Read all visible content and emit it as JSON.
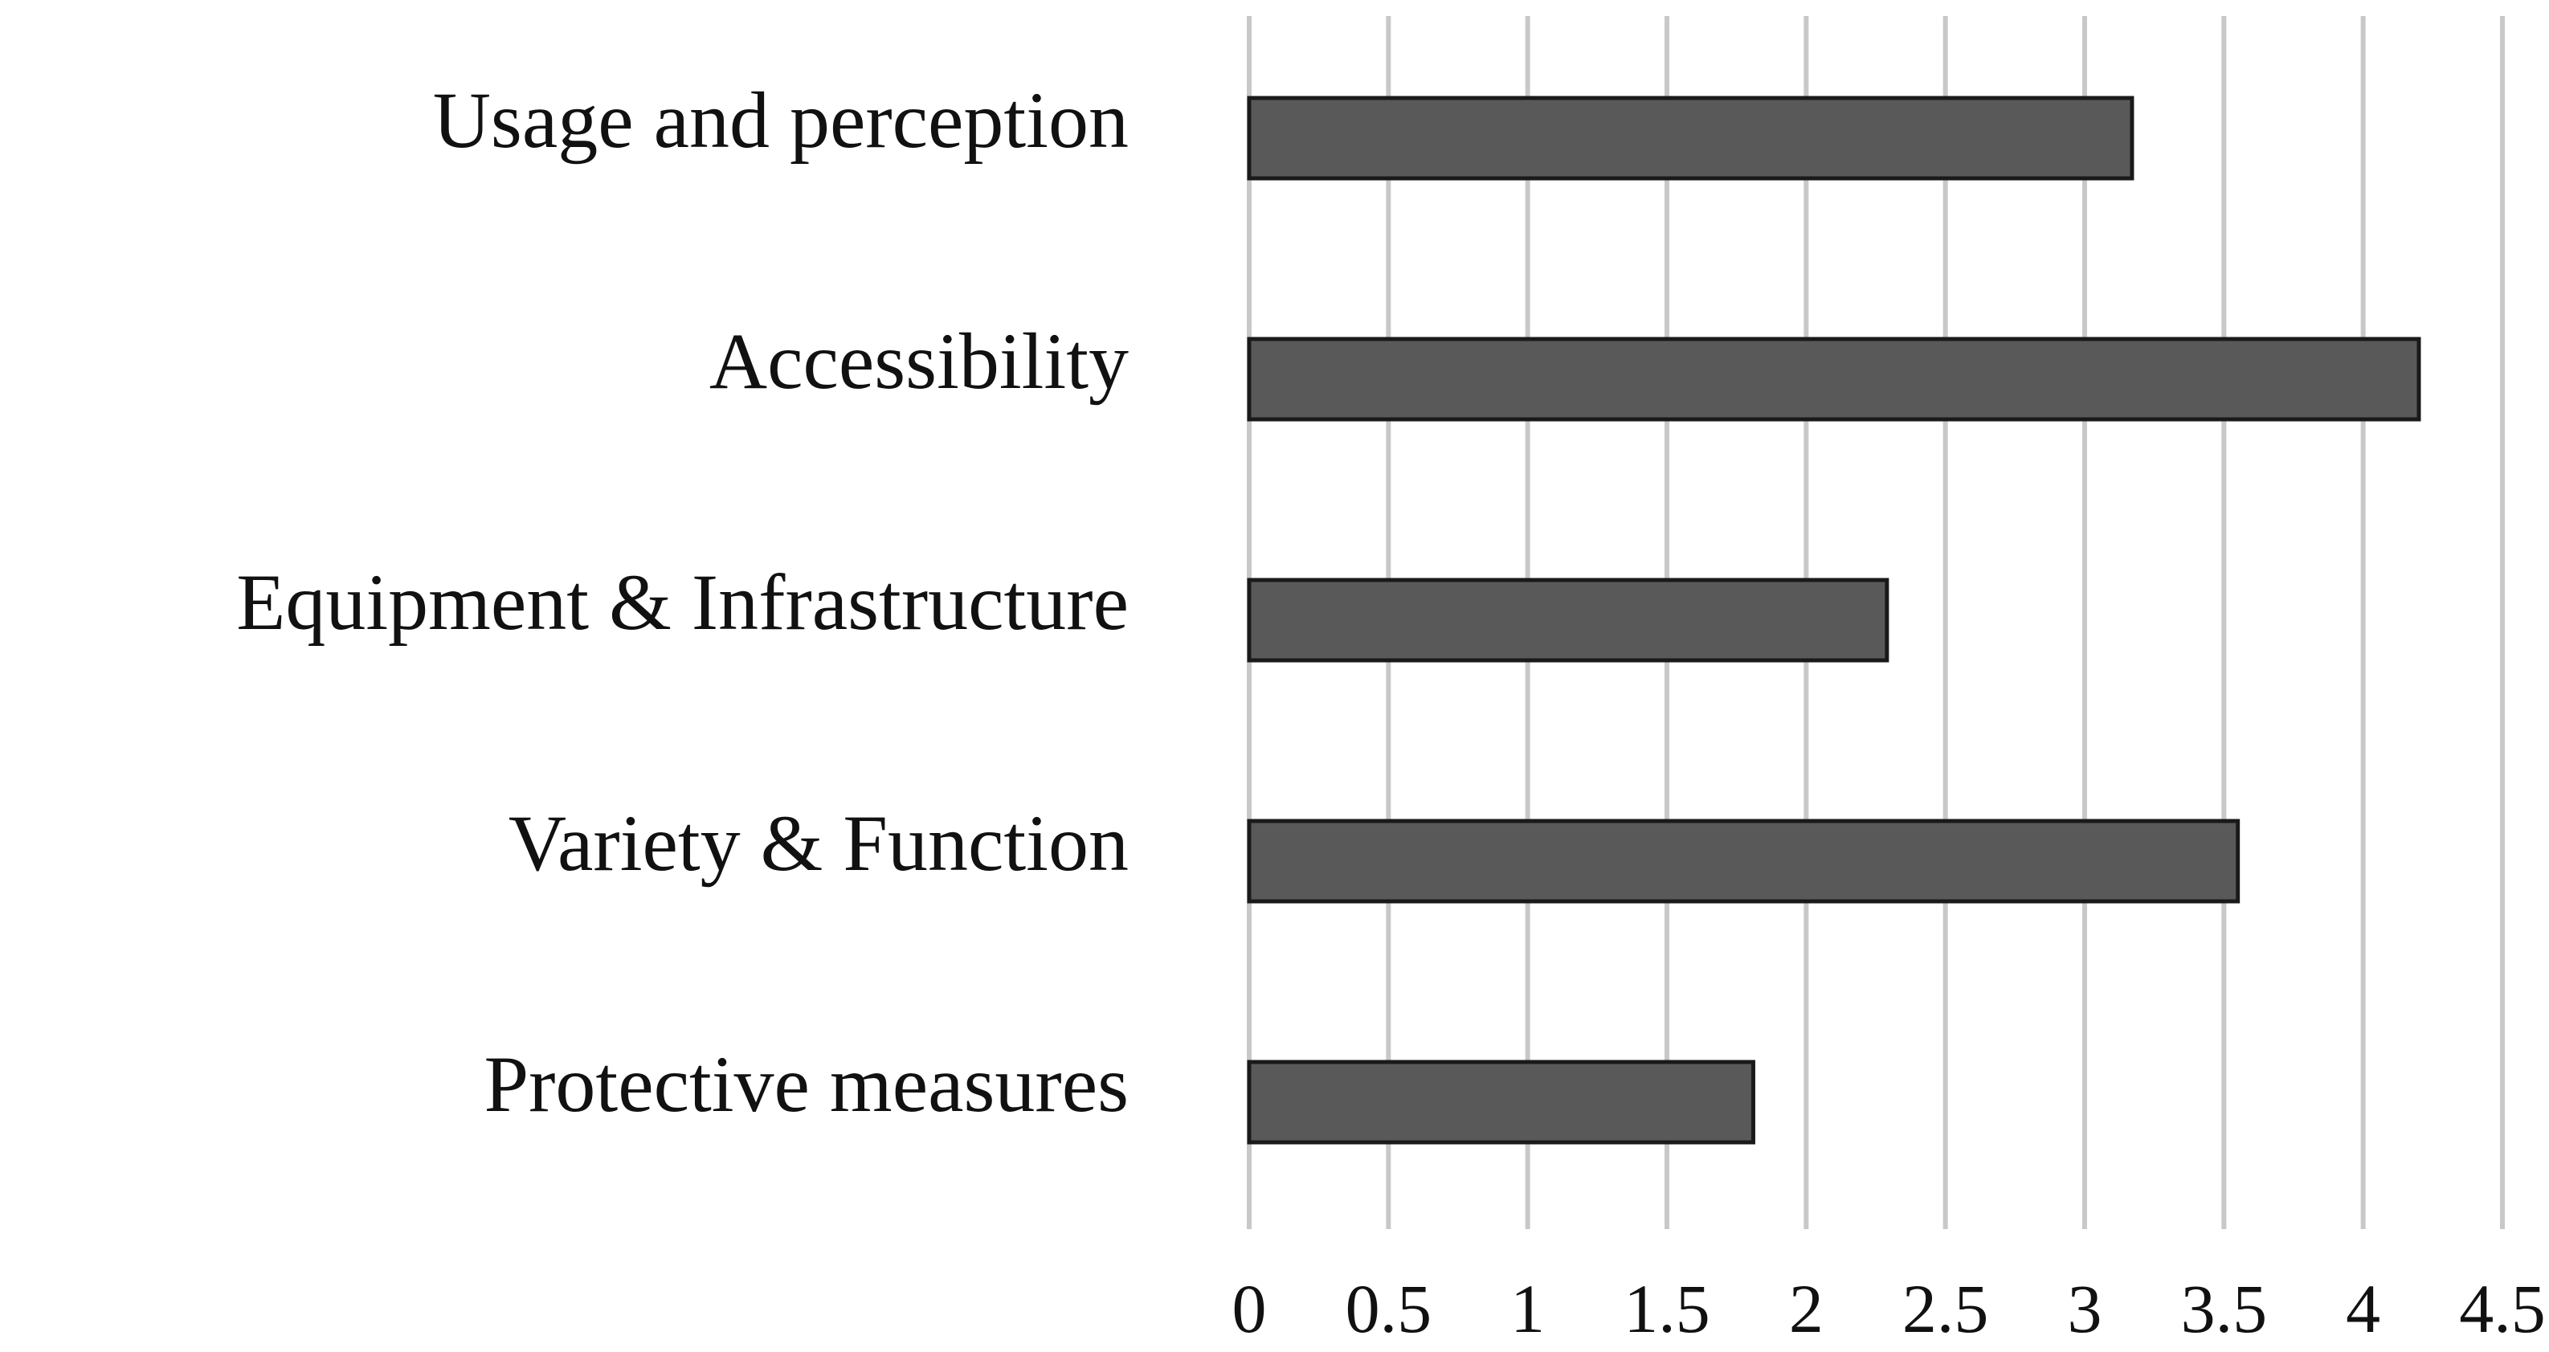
{
  "chart_data": {
    "type": "bar",
    "orientation": "horizontal",
    "categories": [
      "Usage and perception",
      "Accessibility",
      "Equipment & Infrastructure",
      "Variety & Function",
      "Protective measures"
    ],
    "values": [
      3.17,
      4.2,
      2.29,
      3.55,
      1.81
    ],
    "xlim": [
      0,
      4.5
    ],
    "x_ticks": [
      0,
      0.5,
      1,
      1.5,
      2,
      2.5,
      3,
      3.5,
      4,
      4.5
    ],
    "x_tick_labels": [
      "0",
      "0.5",
      "1",
      "1.5",
      "2",
      "2.5",
      "3",
      "3.5",
      "4",
      "4.5"
    ],
    "title": "",
    "xlabel": "",
    "ylabel": "",
    "grid": "vertical",
    "legend": "none",
    "bar_color": "#595959",
    "bar_edge_color": "#1a1a1a",
    "grid_color": "#c8c8c8"
  }
}
